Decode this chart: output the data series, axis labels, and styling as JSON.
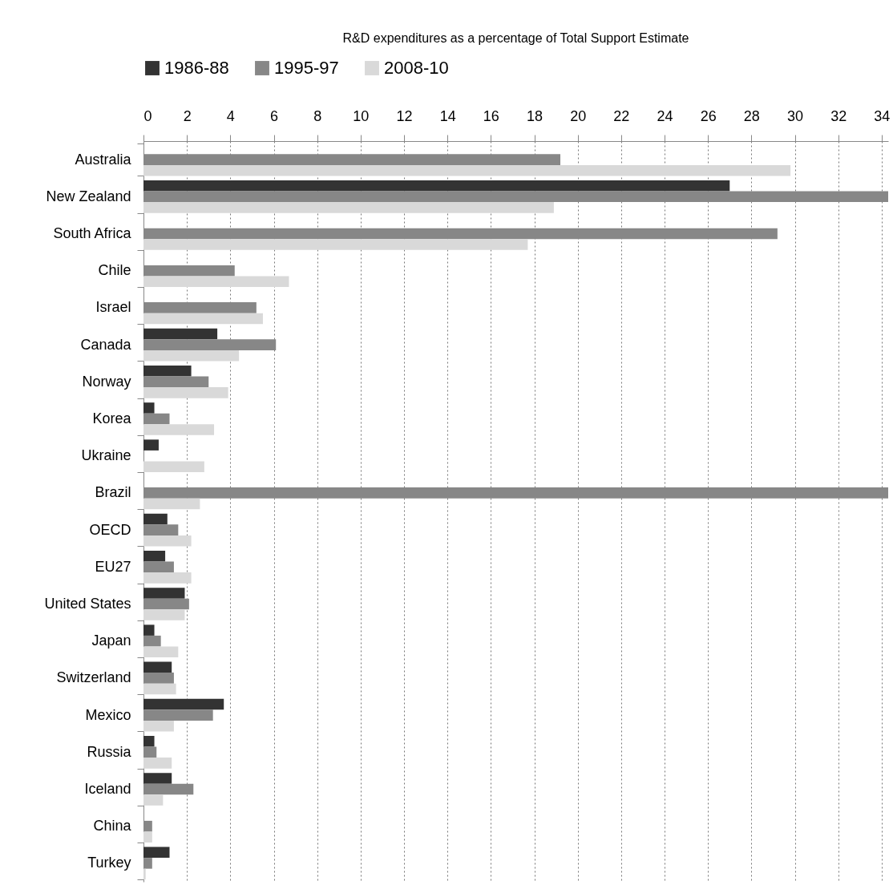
{
  "chart_data": {
    "type": "bar",
    "orientation": "horizontal",
    "title": "R&D expenditures as a percentage of Total Support Estimate",
    "categories": [
      "Australia",
      "New Zealand",
      "South Africa",
      "Chile",
      "Israel",
      "Canada",
      "Norway",
      "Korea",
      "Ukraine",
      "Brazil",
      "OECD",
      "EU27",
      "United States",
      "Japan",
      "Switzerland",
      "Mexico",
      "Russia",
      "Iceland",
      "China",
      "Turkey"
    ],
    "series": [
      {
        "name": "1986-88",
        "color": "#333333",
        "values": [
          null,
          27.0,
          null,
          null,
          null,
          3.4,
          2.2,
          0.5,
          0.7,
          null,
          1.1,
          1.0,
          1.9,
          0.5,
          1.3,
          3.7,
          0.5,
          1.3,
          null,
          1.2
        ]
      },
      {
        "name": "1995-97",
        "color": "#878787",
        "values": [
          19.2,
          34.3,
          29.2,
          4.2,
          5.2,
          6.1,
          3.0,
          1.2,
          0,
          34.3,
          1.6,
          1.4,
          2.1,
          0.8,
          1.4,
          3.2,
          0.6,
          2.3,
          0.4,
          0.4
        ]
      },
      {
        "name": "2008-10",
        "color": "#d9d9d9",
        "values": [
          29.8,
          18.9,
          17.7,
          6.7,
          5.5,
          4.4,
          3.9,
          3.25,
          2.8,
          2.6,
          2.2,
          2.2,
          1.9,
          1.6,
          1.5,
          1.4,
          1.3,
          0.9,
          0.4,
          0.1
        ]
      }
    ],
    "xlim": [
      0,
      34.3
    ],
    "xticks": [
      0,
      2,
      4,
      6,
      8,
      10,
      12,
      14,
      16,
      18,
      20,
      22,
      24,
      26,
      28,
      30,
      32,
      34
    ],
    "grid": "x",
    "legend": "top"
  }
}
